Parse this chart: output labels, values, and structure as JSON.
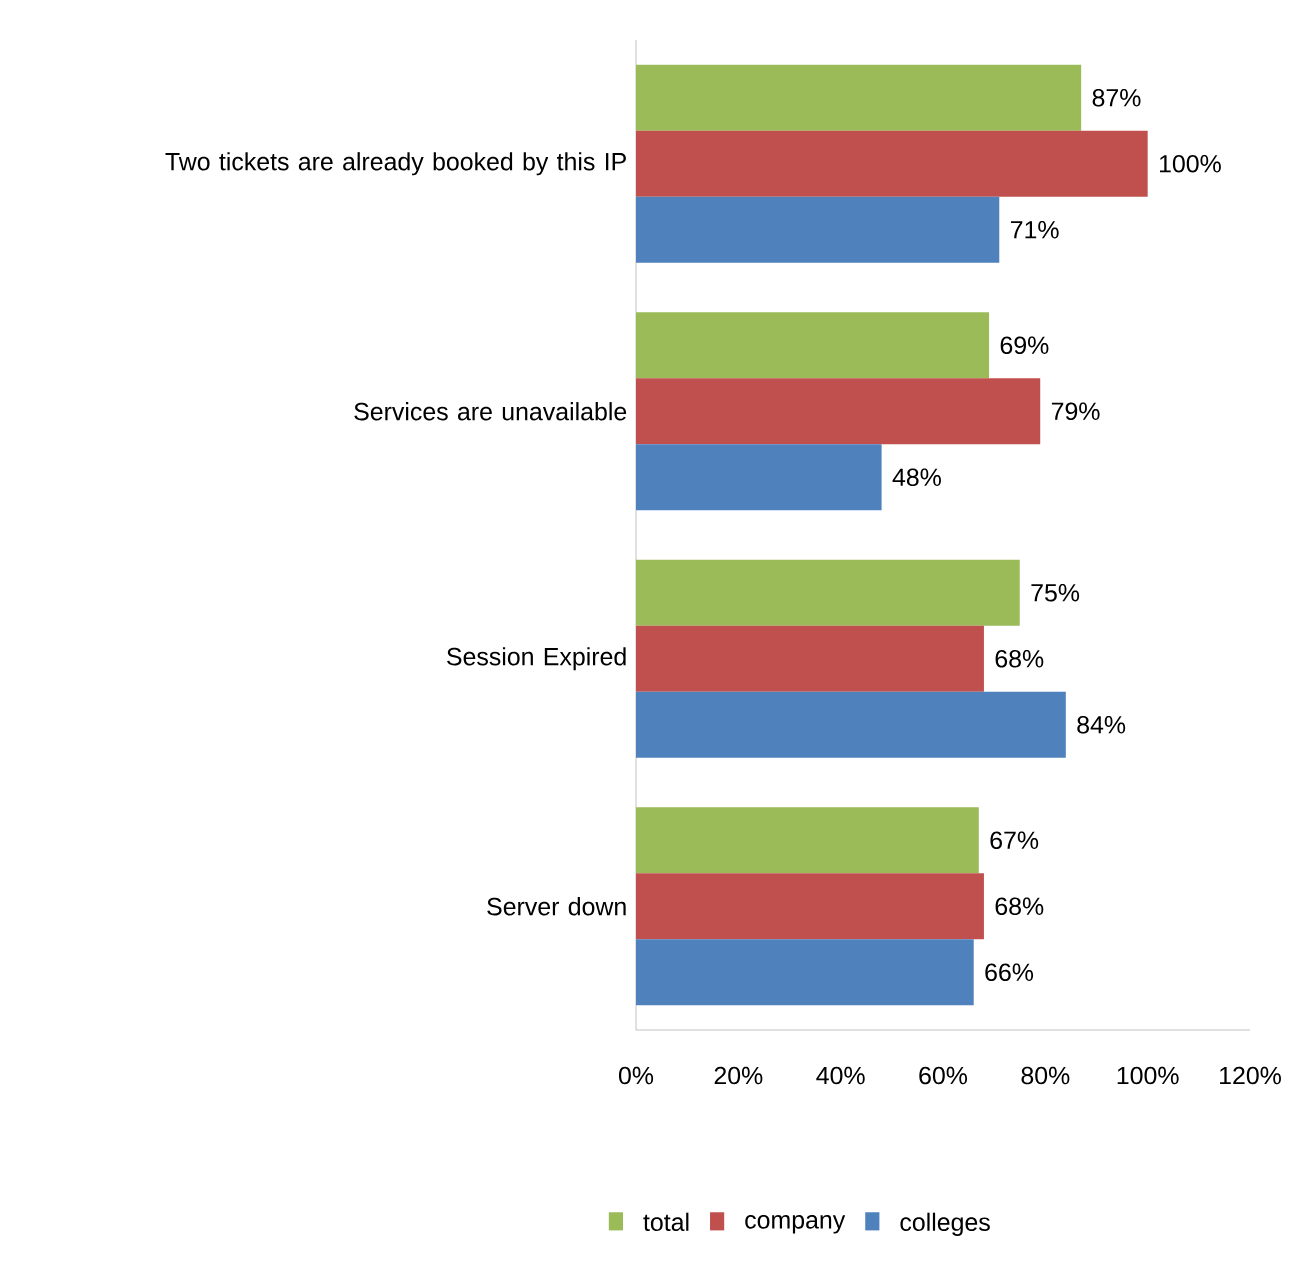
{
  "chart_data": {
    "type": "bar",
    "orientation": "horizontal",
    "legend": "bottom",
    "categories": [
      "Two tickets are already booked by this IP",
      "Services are unavailable",
      "Session Expired",
      "Server down"
    ],
    "series": [
      {
        "name": "total",
        "color": "#9bbb59",
        "values": [
          87,
          69,
          75,
          67
        ],
        "value_labels": [
          "87%",
          "69%",
          "75%",
          "67%"
        ]
      },
      {
        "name": "company",
        "color": "#c0504d",
        "values": [
          100,
          79,
          68,
          68
        ],
        "value_labels": [
          "100%",
          "79%",
          "68%",
          "68%"
        ]
      },
      {
        "name": "colleges",
        "color": "#4f81bd",
        "values": [
          71,
          48,
          84,
          66
        ],
        "value_labels": [
          "71%",
          "48%",
          "84%",
          "66%"
        ]
      }
    ],
    "xlim": [
      0,
      120
    ],
    "xticks": [
      {
        "value": 0,
        "label": "0%"
      },
      {
        "value": 20,
        "label": "20%"
      },
      {
        "value": 40,
        "label": "40%"
      },
      {
        "value": 60,
        "label": "60%"
      },
      {
        "value": 80,
        "label": "80%"
      },
      {
        "value": 100,
        "label": "100%"
      },
      {
        "value": 120,
        "label": "120%"
      }
    ]
  }
}
